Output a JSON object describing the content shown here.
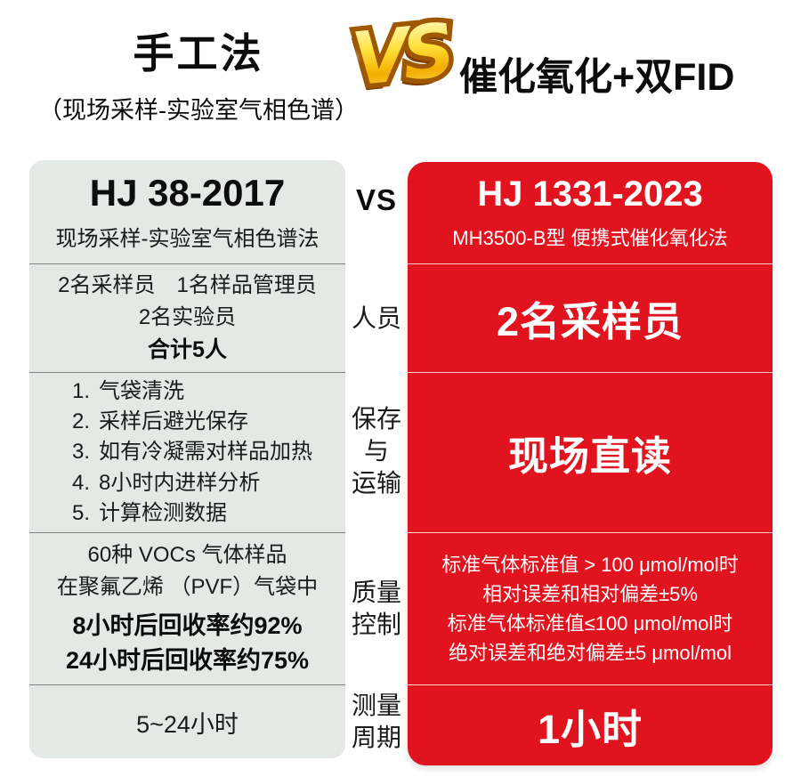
{
  "header": {
    "left_title": "手工法",
    "left_subtitle": "（现场采样-实验室气相色谱）",
    "vs_badge": "VS",
    "right_title": "催化氧化+双FID"
  },
  "mid_column": {
    "vs_label": "VS",
    "personnel": "人员",
    "storage": "保存\n与\n运输",
    "quality": "质量\n控制",
    "cycle": "测量\n周期"
  },
  "left_panel": {
    "standard": "HJ 38-2017",
    "method": "现场采样-实验室气相色谱法",
    "personnel_line1": "2名采样员　1名样品管理员",
    "personnel_line2": "2名实验员",
    "personnel_total": "合计5人",
    "storage_steps": [
      {
        "num": "1.",
        "text": "气袋清洗"
      },
      {
        "num": "2.",
        "text": "采样后避光保存"
      },
      {
        "num": "3.",
        "text": "如有冷凝需对样品加热"
      },
      {
        "num": "4.",
        "text": "8小时内进样分析"
      },
      {
        "num": "5.",
        "text": "计算检测数据"
      }
    ],
    "quality_line1": "60种 VOCs 气体样品",
    "quality_line2": "在聚氟乙烯 （PVF）气袋中",
    "quality_line3": "8小时后回收率约92%",
    "quality_line4": "24小时后回收率约75%",
    "cycle": "5~24小时"
  },
  "right_panel": {
    "standard": "HJ 1331-2023",
    "method": "MH3500-B型 便携式催化氧化法",
    "personnel": "2名采样员",
    "storage": "现场直读",
    "quality_lines": [
      "标准气体标准值 > 100 μmol/mol时",
      "相对误差和相对偏差±5%",
      "标准气体标准值≤100 μmol/mol时",
      "绝对误差和绝对偏差±5 μmol/mol"
    ],
    "cycle": "1小时"
  },
  "colors": {
    "red": "#e0131f",
    "panel_gray": "#e4e9e6",
    "gold_light": "#ffe23e",
    "gold_dark": "#f4ad00",
    "gold_outline": "#a05800"
  }
}
